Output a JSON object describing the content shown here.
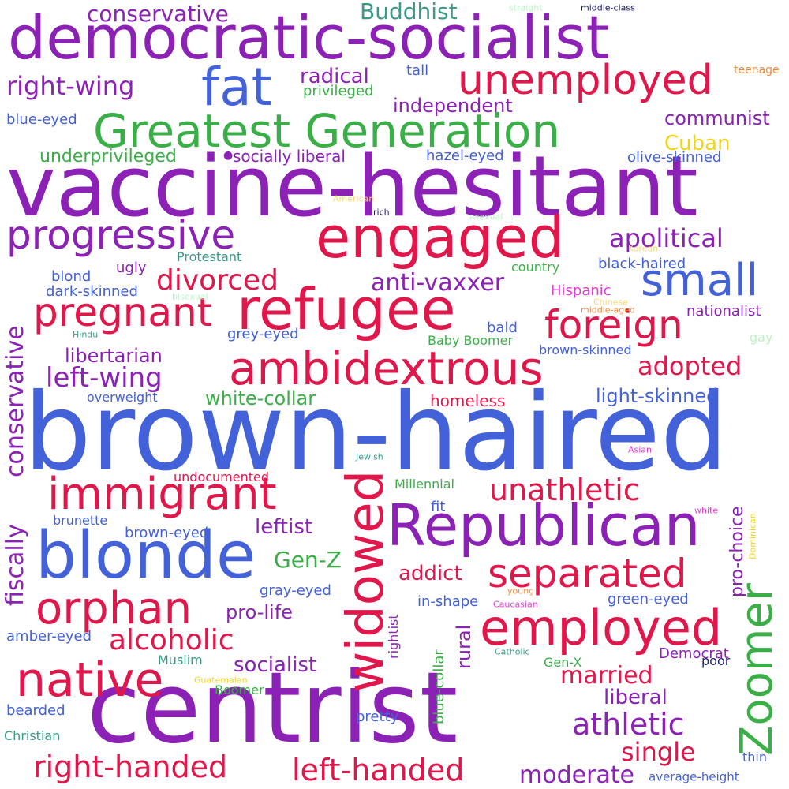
{
  "words": {
    "brown_haired": "brown-haired",
    "vaccine_hesitant": "vaccine-hesitant",
    "centrist": "centrist",
    "democratic_socialist": "democratic-socialist",
    "greatest_generation": "Greatest Generation",
    "republican": "Republican",
    "blonde": "blonde",
    "refugee": "refugee",
    "engaged": "engaged",
    "ambidextrous": "ambidextrous",
    "fat": "fat",
    "unemployed": "unemployed",
    "progressive": "progressive",
    "immigrant": "immigrant",
    "employed": "employed",
    "native": "native",
    "orphan": "orphan",
    "widowed": "widowed",
    "zoomer": "Zoomer",
    "small": "small",
    "pregnant": "pregnant",
    "foreign": "foreign",
    "separated": "separated",
    "athletic": "athletic",
    "unathletic": "unathletic",
    "right_handed": "right-handed",
    "left_handed": "left-handed",
    "right_wing": "right-wing",
    "conservative_top": "conservative",
    "conservative_vertical": "conservative",
    "fiscally": "fiscally",
    "alcoholic": "alcoholic",
    "divorced": "divorced",
    "left_wing": "left-wing",
    "apolitical": "apolitical",
    "anti_vaxxer": "anti-vaxxer",
    "adopted": "adopted",
    "single": "single",
    "moderate": "moderate",
    "married": "married",
    "liberal": "liberal",
    "light_skinned": "light-skinned",
    "buddhist": "Buddhist",
    "radical": "radical",
    "independent": "independent",
    "communist": "communist",
    "cuban": "Cuban",
    "underprivileged": "underprivileged",
    "socially_liberal": "socially liberal",
    "libertarian": "libertarian",
    "white_collar": "white-collar",
    "leftist": "leftist",
    "gen_z": "Gen-Z",
    "addict": "addict",
    "pro_life": "pro-life",
    "socialist": "socialist",
    "homeless": "homeless",
    "pro_choice": "pro-choice",
    "rural": "rural",
    "blue_collar": "blue-collar",
    "privileged": "privileged",
    "tall": "tall",
    "blue_eyed": "blue-eyed",
    "hazel_eyed": "hazel-eyed",
    "olive_skinned": "olive-skinned",
    "protestant": "Protestant",
    "ugly": "ugly",
    "blond": "blond",
    "dark_skinned": "dark-skinned",
    "black_haired": "black-haired",
    "country": "country",
    "hispanic": "Hispanic",
    "nationalist": "nationalist",
    "bald": "bald",
    "grey_eyed": "grey-eyed",
    "baby_boomer": "Baby Boomer",
    "brown_skinned": "brown-skinned",
    "overweight": "overweight",
    "undocumented": "undocumented",
    "millennial": "Millennial",
    "brunette": "brunette",
    "fit": "fit",
    "brown_eyed": "brown-eyed",
    "gray_eyed": "gray-eyed",
    "in_shape": "in-shape",
    "green_eyed": "green-eyed",
    "amber_eyed": "amber-eyed",
    "muslim": "Muslim",
    "gen_x": "Gen-X",
    "democrat": "Democrat",
    "boomer": "Boomer",
    "bearded": "bearded",
    "pretty": "pretty",
    "christian": "Christian",
    "average_height": "average-height",
    "thin": "thin",
    "rightist": "rightist",
    "teenage": "teenage",
    "straight": "straight",
    "middle_class": "middle-class",
    "american": "American",
    "rich": "rich",
    "asexual": "asexual",
    "korean": "Korean",
    "bisexual": "bisexual",
    "chinese": "Chinese",
    "middle_aged": "middle-aged",
    "hindu": "Hindu",
    "gay": "gay",
    "jewish": "Jewish",
    "asian": "Asian",
    "white": "white",
    "dominican": "Dominican",
    "young": "young",
    "caucasian": "Caucasian",
    "catholic": "Catholic",
    "guatemalan": "Guatemalan",
    "poor": "poor"
  },
  "colors": {
    "purple": "#8b22b5",
    "blue": "#4361d8",
    "red": "#e0174a",
    "green": "#3aaf48",
    "teal": "#3a9a8a",
    "yellow": "#f2d21c",
    "orange": "#f08a3c",
    "navy": "#1e1e6e",
    "magenta": "#e23ad7",
    "background": "#ffffff"
  }
}
